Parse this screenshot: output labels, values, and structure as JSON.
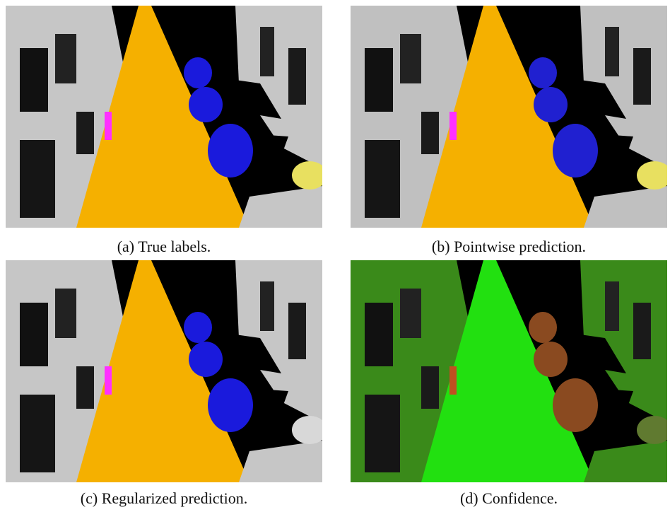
{
  "figure": {
    "panels": [
      {
        "caption": "(a) True labels."
      },
      {
        "caption": "(b) Pointwise prediction."
      },
      {
        "caption": "(c) Regularized prediction."
      },
      {
        "caption": "(d) Confidence."
      }
    ]
  }
}
